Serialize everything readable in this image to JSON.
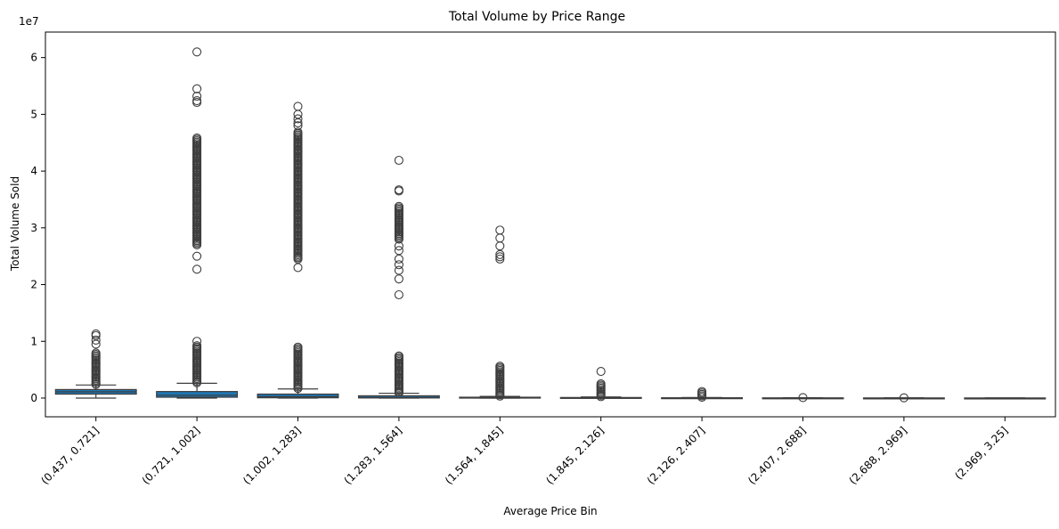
{
  "chart_data": {
    "type": "box",
    "title": "Total Volume by Price Range",
    "xlabel": "Average Price Bin",
    "ylabel": "Total Volume Sold",
    "y_offset_label": "1e7",
    "y_scale_factor": 10000000,
    "ylim": [
      -3300000,
      64500000
    ],
    "yticks": [
      0,
      10000000,
      20000000,
      30000000,
      40000000,
      50000000,
      60000000
    ],
    "ytick_labels": [
      "0",
      "1",
      "2",
      "3",
      "4",
      "5",
      "6"
    ],
    "grid": false,
    "box_color": "#1f77b4",
    "edge_color": "#3d3d3d",
    "categories": [
      "(0.437, 0.721]",
      "(0.721, 1.002]",
      "(1.002, 1.283]",
      "(1.283, 1.564]",
      "(1.564, 1.845]",
      "(1.845, 2.126]",
      "(2.126, 2.407]",
      "(2.407, 2.688]",
      "(2.688, 2.969]",
      "(2.969, 3.25]"
    ],
    "boxes": [
      {
        "whisker_low": 0,
        "q1": 700000,
        "median": 1100000,
        "q3": 1500000,
        "whisker_high": 2300000,
        "outlier_dense_ranges": [
          [
            2400000,
            8000000
          ]
        ],
        "outliers": [
          9500000,
          10200000,
          11000000,
          11300000
        ]
      },
      {
        "whisker_low": 0,
        "q1": 150000,
        "median": 500000,
        "q3": 1150000,
        "whisker_high": 2600000,
        "outlier_dense_ranges": [
          [
            2700000,
            9300000
          ],
          [
            27000000,
            46000000
          ]
        ],
        "outliers": [
          10000000,
          22700000,
          25000000,
          52100000,
          52400000,
          53200000,
          54500000,
          61000000
        ]
      },
      {
        "whisker_low": 0,
        "q1": 50000,
        "median": 250000,
        "q3": 700000,
        "whisker_high": 1600000,
        "outlier_dense_ranges": [
          [
            1700000,
            9000000
          ],
          [
            24500000,
            47000000
          ]
        ],
        "outliers": [
          23000000,
          48000000,
          48500000,
          49200000,
          50000000,
          51400000
        ]
      },
      {
        "whisker_low": 0,
        "q1": 20000,
        "median": 120000,
        "q3": 400000,
        "whisker_high": 850000,
        "outlier_dense_ranges": [
          [
            900000,
            7500000
          ],
          [
            28000000,
            34000000
          ]
        ],
        "outliers": [
          18200000,
          21000000,
          22500000,
          23500000,
          24500000,
          26000000,
          26800000,
          36500000,
          36700000,
          41900000
        ]
      },
      {
        "whisker_low": 0,
        "q1": 10000,
        "median": 50000,
        "q3": 150000,
        "whisker_high": 300000,
        "outlier_dense_ranges": [
          [
            350000,
            5700000
          ]
        ],
        "outliers": [
          24500000,
          24900000,
          25300000,
          26800000,
          28200000,
          29600000
        ]
      },
      {
        "whisker_low": 0,
        "q1": 5000,
        "median": 30000,
        "q3": 100000,
        "whisker_high": 200000,
        "outlier_dense_ranges": [
          [
            250000,
            2600000
          ]
        ],
        "outliers": [
          4700000
        ]
      },
      {
        "whisker_low": 0,
        "q1": 3000,
        "median": 15000,
        "q3": 50000,
        "whisker_high": 100000,
        "outlier_dense_ranges": [
          [
            150000,
            1300000
          ]
        ],
        "outliers": []
      },
      {
        "whisker_low": 0,
        "q1": 2000,
        "median": 8000,
        "q3": 30000,
        "whisker_high": 60000,
        "outlier_dense_ranges": [
          [
            80000,
            250000
          ]
        ],
        "outliers": []
      },
      {
        "whisker_low": 0,
        "q1": 1000,
        "median": 5000,
        "q3": 15000,
        "whisker_high": 30000,
        "outlier_dense_ranges": [
          [
            50000,
            200000
          ]
        ],
        "outliers": []
      },
      {
        "whisker_low": 0,
        "q1": 500,
        "median": 2000,
        "q3": 6000,
        "whisker_high": 12000,
        "outlier_dense_ranges": [],
        "outliers": []
      }
    ]
  }
}
